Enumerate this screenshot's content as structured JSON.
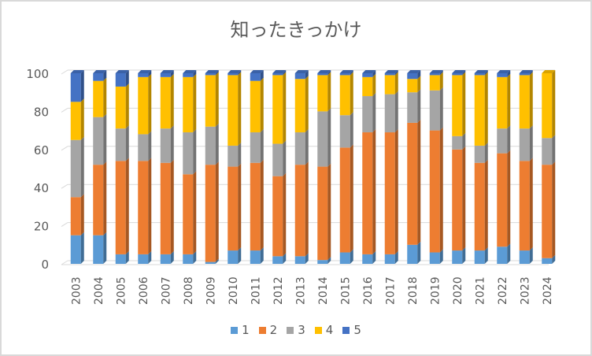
{
  "chart_data": {
    "type": "bar",
    "stacked": true,
    "title": "知ったきっかけ",
    "xlabel": "",
    "ylabel": "",
    "ylim": [
      0,
      100
    ],
    "yticks": [
      "0",
      "20",
      "40",
      "60",
      "80",
      "100"
    ],
    "grid": true,
    "legend_position": "bottom",
    "categories": [
      "2003",
      "2004",
      "2005",
      "2006",
      "2007",
      "2008",
      "2009",
      "2010",
      "2011",
      "2012",
      "2013",
      "2014",
      "2015",
      "2016",
      "2017",
      "2018",
      "2019",
      "2020",
      "2021",
      "2022",
      "2023",
      "2024"
    ],
    "series": [
      {
        "name": "1",
        "color": "#5b9bd5",
        "values": [
          15,
          15,
          5,
          5,
          5,
          5,
          1,
          7,
          7,
          4,
          4,
          2,
          6,
          5,
          5,
          10,
          6,
          7,
          7,
          9,
          7,
          3
        ]
      },
      {
        "name": "2",
        "color": "#ed7d31",
        "values": [
          20,
          37,
          49,
          49,
          48,
          42,
          51,
          44,
          46,
          42,
          48,
          49,
          55,
          64,
          64,
          64,
          64,
          53,
          46,
          49,
          47,
          49
        ]
      },
      {
        "name": "3",
        "color": "#a5a5a5",
        "values": [
          30,
          25,
          17,
          14,
          18,
          22,
          20,
          11,
          16,
          17,
          17,
          29,
          17,
          19,
          20,
          16,
          21,
          7,
          9,
          13,
          17,
          14
        ]
      },
      {
        "name": "4",
        "color": "#ffc000",
        "values": [
          20,
          19,
          22,
          30,
          27,
          29,
          27,
          37,
          27,
          36,
          28,
          19,
          21,
          10,
          10,
          7,
          8,
          32,
          37,
          27,
          28,
          34
        ]
      },
      {
        "name": "5",
        "color": "#4472c4",
        "values": [
          15,
          4,
          7,
          2,
          2,
          2,
          1,
          1,
          4,
          1,
          3,
          1,
          1,
          2,
          1,
          3,
          1,
          1,
          1,
          2,
          1,
          0
        ]
      }
    ]
  }
}
